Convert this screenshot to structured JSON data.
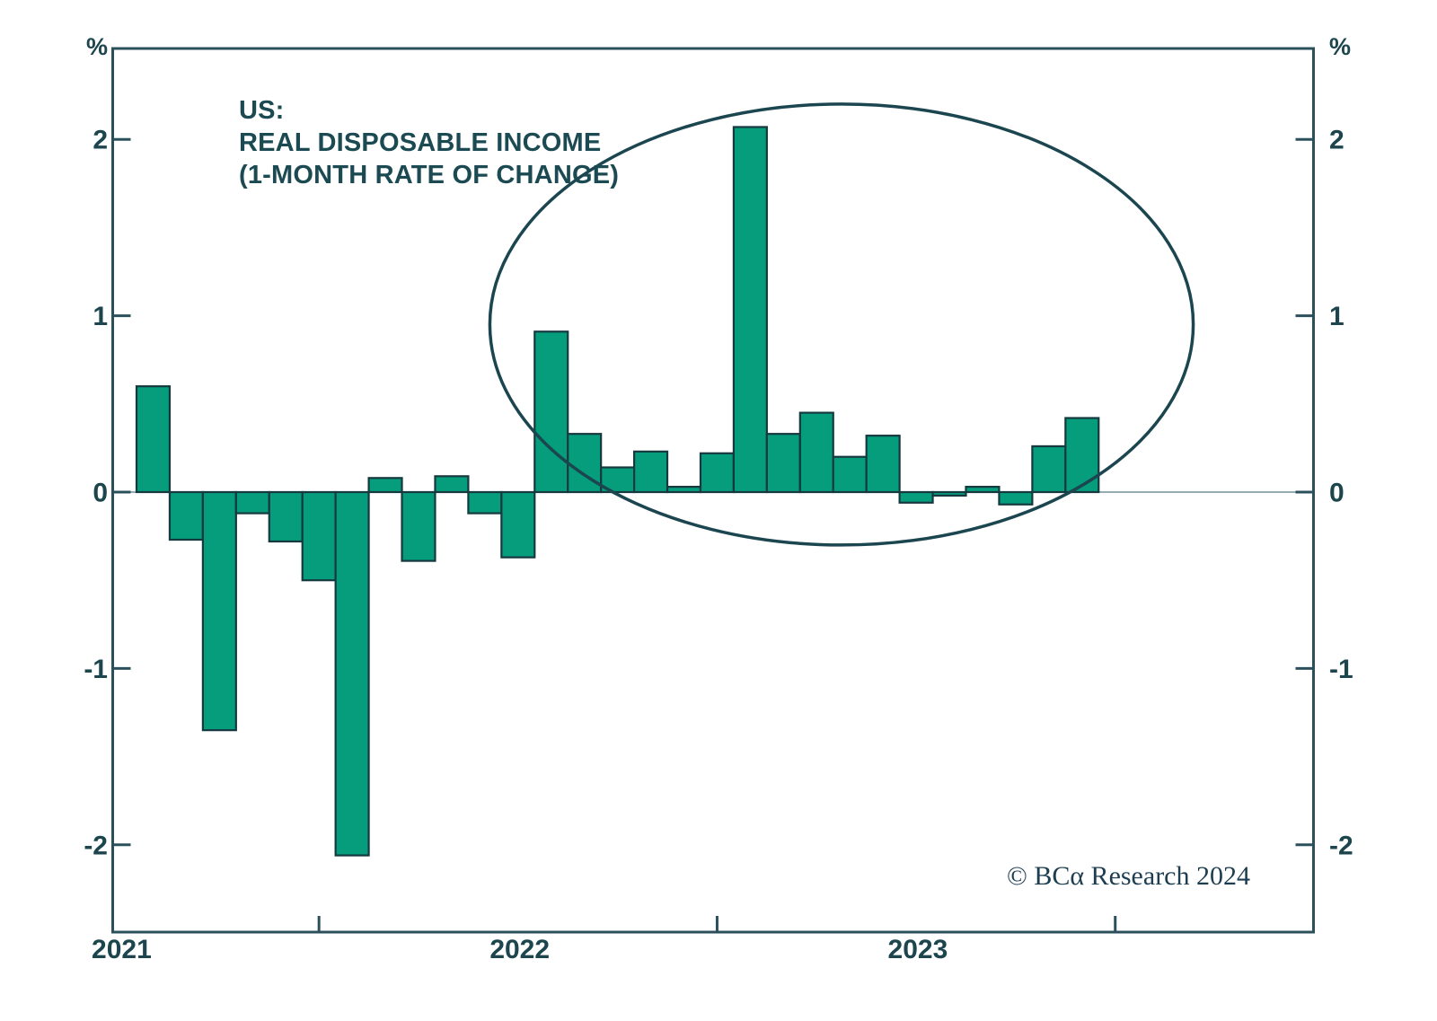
{
  "title": {
    "line1": "US:",
    "line2": "REAL DISPOSABLE INCOME",
    "line3": "(1-MONTH RATE OF CHANGE)"
  },
  "watermark": "© BCα Research 2024",
  "axis": {
    "unit_label": "%",
    "y_tick_labels": [
      "2",
      "1",
      "0",
      "-1",
      "-2"
    ],
    "x_year_labels": [
      "2021",
      "2022",
      "2023"
    ]
  },
  "colors": {
    "background": "#ffffff",
    "bar_fill": "#059d7b",
    "bar_stroke": "#16393f",
    "axis": "#2b505b",
    "tick": "#2b505b",
    "text": "#1c454e",
    "title": "#1b4a52",
    "zero_line": "#73909b",
    "ellipse": "#1b4650",
    "watermark": "#1d3e51"
  },
  "chart_data": {
    "type": "bar",
    "title": "US: REAL DISPOSABLE INCOME (1-MONTH RATE OF CHANGE)",
    "ylabel": "%",
    "ylim": [
      -2.5,
      2.52
    ],
    "y_ticks": [
      2,
      1,
      0,
      -1,
      -2
    ],
    "grid": false,
    "legend": false,
    "x": [
      "Jan 2021",
      "Feb 2021",
      "Mar 2021",
      "Apr 2021",
      "May 2021",
      "Jun 2021",
      "Jul 2021",
      "Aug 2021",
      "Sep 2021",
      "Oct 2021",
      "Nov 2021",
      "Dec 2021",
      "Jan 2022",
      "Feb 2022",
      "Mar 2022",
      "Apr 2022",
      "May 2022",
      "Jun 2022",
      "Jul 2022",
      "Aug 2022",
      "Sep 2022",
      "Oct 2022",
      "Nov 2022",
      "Dec 2022",
      "Jan 2023",
      "Feb 2023",
      "Mar 2023",
      "Apr 2023",
      "May 2023"
    ],
    "values": [
      0.6,
      -0.27,
      -1.35,
      -0.12,
      -0.28,
      -0.5,
      -2.06,
      0.08,
      -0.39,
      0.09,
      -0.12,
      -0.37,
      0.91,
      0.33,
      0.14,
      0.23,
      0.03,
      0.22,
      2.07,
      0.33,
      0.45,
      0.2,
      0.32,
      -0.06,
      -0.02,
      0.03,
      -0.07,
      0.26,
      0.42
    ],
    "x_year_tick_month_offsets": [
      5.5,
      17.5,
      29.5
    ],
    "annotation_ellipse": {
      "x_center_month_index": 21.25,
      "y_center_pct": 0.95,
      "x_radius_months": 10.6,
      "y_radius_pct": 1.25
    }
  }
}
